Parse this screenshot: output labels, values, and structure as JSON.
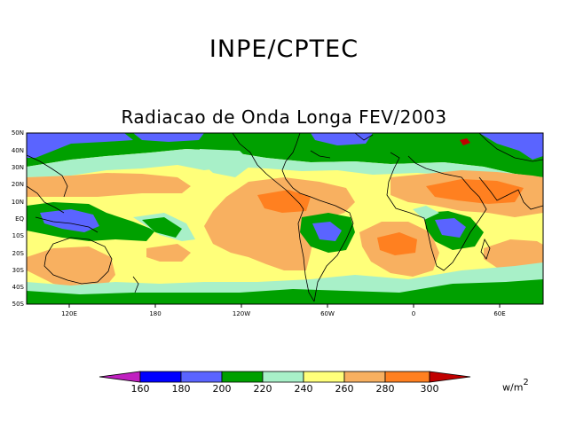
{
  "title": "INPE/CPTEC",
  "subtitle": "Radiacao de Onda Longa FEV/2003",
  "map": {
    "lat_labels": [
      "50N",
      "40N",
      "30N",
      "20N",
      "10N",
      "EQ",
      "10S",
      "20S",
      "30S",
      "40S",
      "50S"
    ],
    "lon_labels": [
      "120E",
      "180",
      "120W",
      "60W",
      "0",
      "60E"
    ]
  },
  "colorbar": {
    "ticks": [
      "160",
      "180",
      "200",
      "220",
      "240",
      "260",
      "280",
      "300"
    ],
    "colors": [
      "#c020c0",
      "#0000ff",
      "#5a64ff",
      "#00a000",
      "#a8f0c8",
      "#ffff7a",
      "#f8b060",
      "#ff8020",
      "#c00000"
    ],
    "units": "w/m",
    "units_exp": "2"
  }
}
